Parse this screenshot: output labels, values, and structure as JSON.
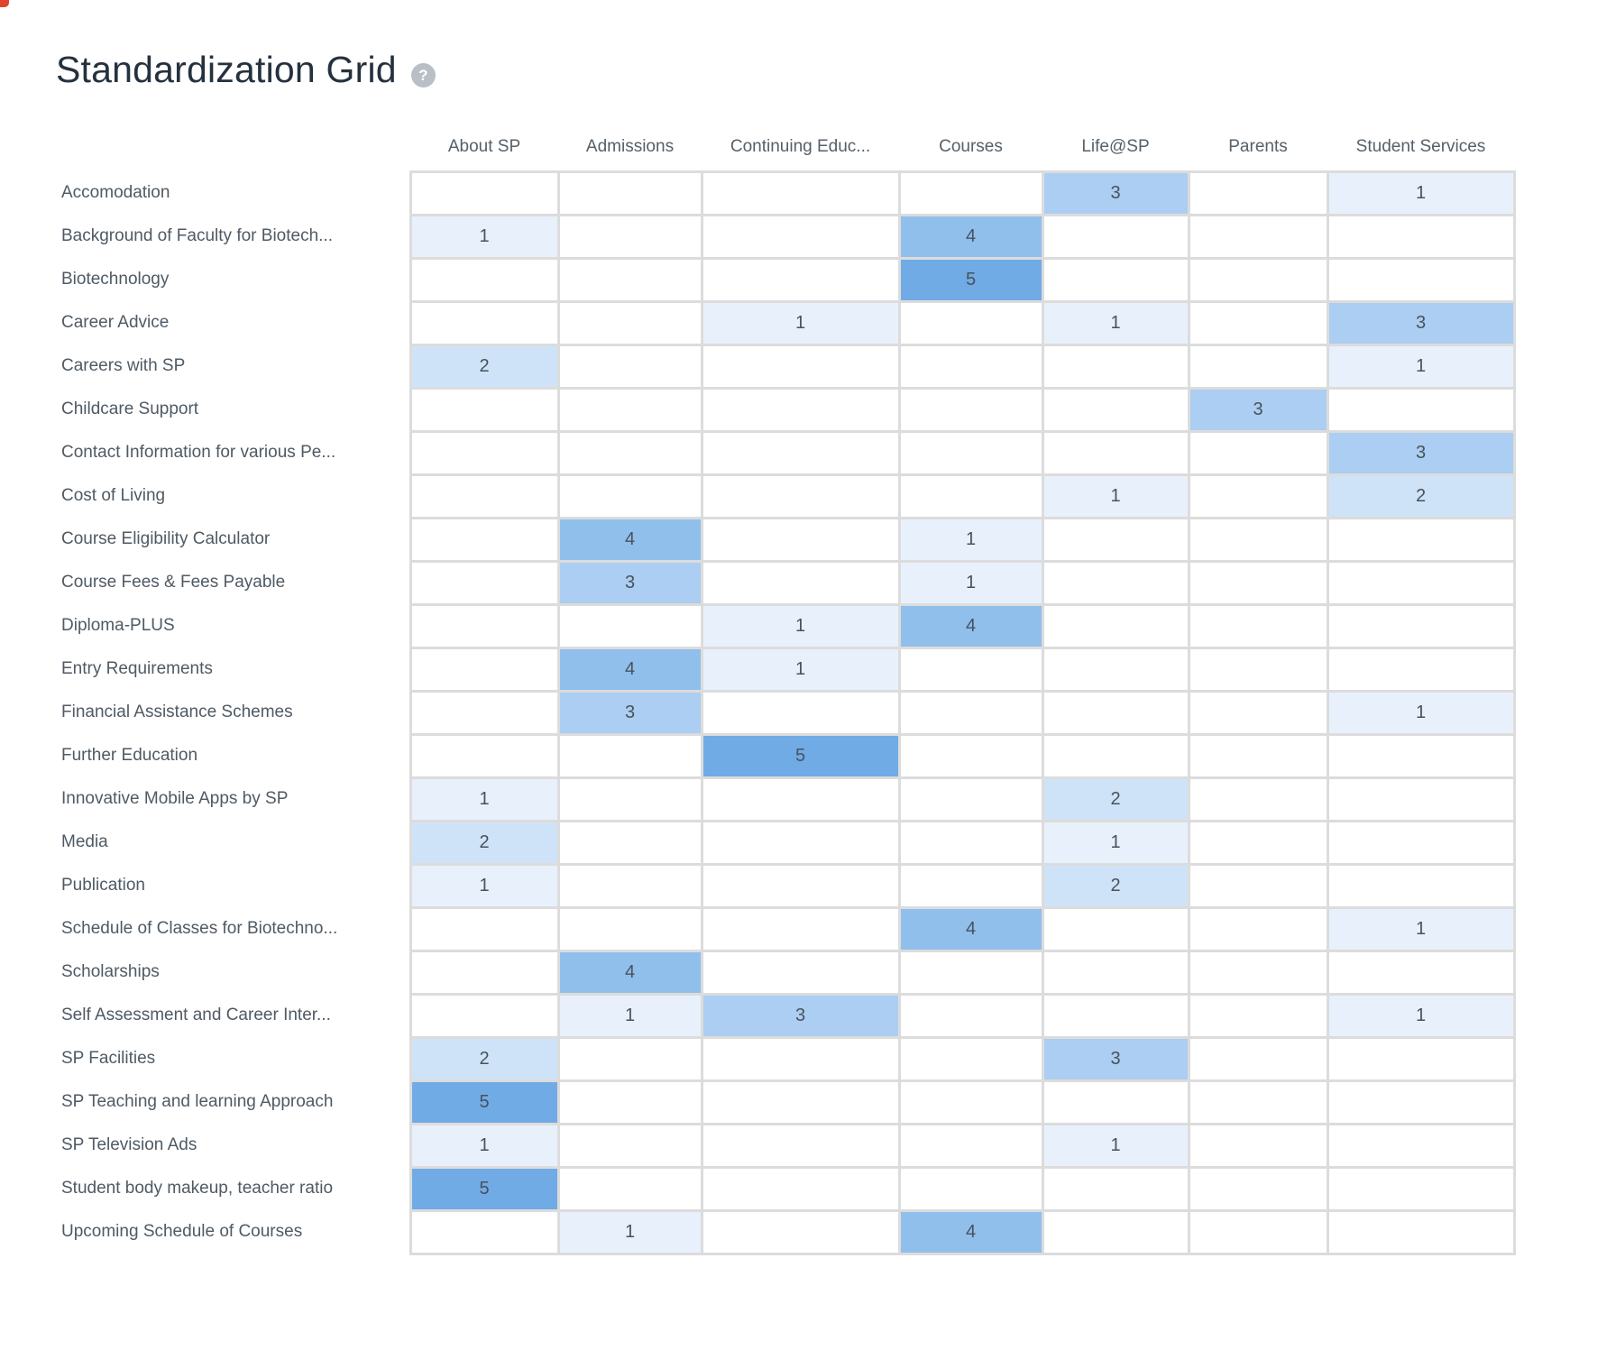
{
  "page": {
    "title": "Standardization Grid",
    "help_glyph": "?"
  },
  "colors": {
    "grid_line": "#dcdcdc",
    "artifact_red": "#e0442c",
    "value_scale": {
      "1": "#e8f1fb",
      "2": "#cfe3f8",
      "3": "#abcef2",
      "4": "#90bfec",
      "5": "#70abe6"
    }
  },
  "grid": {
    "columns": [
      "About SP",
      "Admissions",
      "Continuing Educ...",
      "Courses",
      "Life@SP",
      "Parents",
      "Student Services"
    ],
    "rows": [
      {
        "label": "Accomodation",
        "values": [
          null,
          null,
          null,
          null,
          3,
          null,
          1
        ]
      },
      {
        "label": "Background of Faculty for Biotech...",
        "values": [
          1,
          null,
          null,
          4,
          null,
          null,
          null
        ]
      },
      {
        "label": "Biotechnology",
        "values": [
          null,
          null,
          null,
          5,
          null,
          null,
          null
        ]
      },
      {
        "label": "Career Advice",
        "values": [
          null,
          null,
          1,
          null,
          1,
          null,
          3
        ]
      },
      {
        "label": "Careers with SP",
        "values": [
          2,
          null,
          null,
          null,
          null,
          null,
          1
        ]
      },
      {
        "label": "Childcare Support",
        "values": [
          null,
          null,
          null,
          null,
          null,
          3,
          null
        ]
      },
      {
        "label": "Contact Information for various Pe...",
        "values": [
          null,
          null,
          null,
          null,
          null,
          null,
          3
        ]
      },
      {
        "label": "Cost of Living",
        "values": [
          null,
          null,
          null,
          null,
          1,
          null,
          2
        ]
      },
      {
        "label": "Course Eligibility Calculator",
        "values": [
          null,
          4,
          null,
          1,
          null,
          null,
          null
        ]
      },
      {
        "label": "Course Fees & Fees Payable",
        "values": [
          null,
          3,
          null,
          1,
          null,
          null,
          null
        ]
      },
      {
        "label": "Diploma-PLUS",
        "values": [
          null,
          null,
          1,
          4,
          null,
          null,
          null
        ]
      },
      {
        "label": "Entry Requirements",
        "values": [
          null,
          4,
          1,
          null,
          null,
          null,
          null
        ]
      },
      {
        "label": "Financial Assistance Schemes",
        "values": [
          null,
          3,
          null,
          null,
          null,
          null,
          1
        ]
      },
      {
        "label": "Further Education",
        "values": [
          null,
          null,
          5,
          null,
          null,
          null,
          null
        ]
      },
      {
        "label": "Innovative Mobile Apps by SP",
        "values": [
          1,
          null,
          null,
          null,
          2,
          null,
          null
        ]
      },
      {
        "label": "Media",
        "values": [
          2,
          null,
          null,
          null,
          1,
          null,
          null
        ]
      },
      {
        "label": "Publication",
        "values": [
          1,
          null,
          null,
          null,
          2,
          null,
          null
        ]
      },
      {
        "label": "Schedule of Classes for Biotechno...",
        "values": [
          null,
          null,
          null,
          4,
          null,
          null,
          1
        ]
      },
      {
        "label": "Scholarships",
        "values": [
          null,
          4,
          null,
          null,
          null,
          null,
          null
        ]
      },
      {
        "label": "Self Assessment and Career Inter...",
        "values": [
          null,
          1,
          3,
          null,
          null,
          null,
          1
        ]
      },
      {
        "label": "SP Facilities",
        "values": [
          2,
          null,
          null,
          null,
          3,
          null,
          null
        ]
      },
      {
        "label": "SP Teaching and learning Approach",
        "values": [
          5,
          null,
          null,
          null,
          null,
          null,
          null
        ]
      },
      {
        "label": "SP Television Ads",
        "values": [
          1,
          null,
          null,
          null,
          1,
          null,
          null
        ]
      },
      {
        "label": "Student body makeup, teacher ratio",
        "values": [
          5,
          null,
          null,
          null,
          null,
          null,
          null
        ]
      },
      {
        "label": "Upcoming Schedule of Courses",
        "values": [
          null,
          1,
          null,
          4,
          null,
          null,
          null
        ]
      }
    ]
  }
}
